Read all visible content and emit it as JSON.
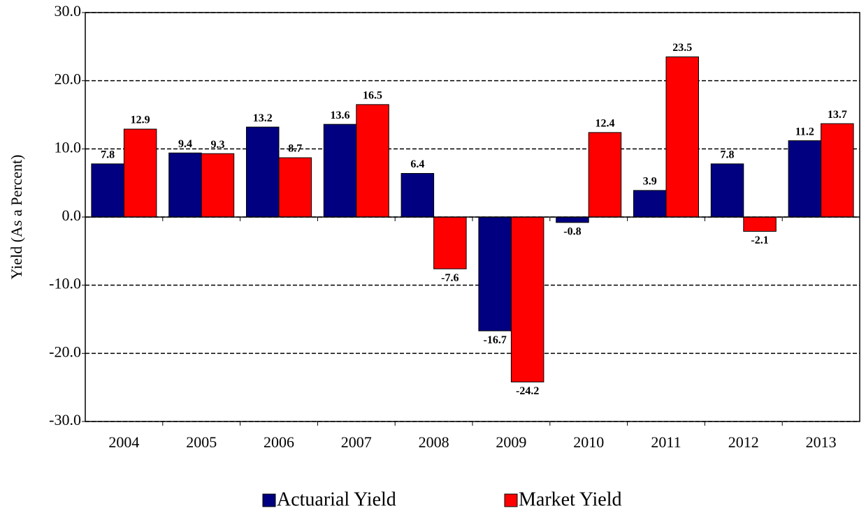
{
  "chart_data": {
    "type": "bar",
    "y_label": "Yield (As a Percent)",
    "categories": [
      "2004",
      "2005",
      "2006",
      "2007",
      "2008",
      "2009",
      "2010",
      "2011",
      "2012",
      "2013"
    ],
    "series": [
      {
        "name": "Actuarial Yield",
        "color": "#000080",
        "values": [
          7.8,
          9.4,
          13.2,
          13.6,
          6.4,
          -16.7,
          -0.8,
          3.9,
          7.8,
          11.2
        ]
      },
      {
        "name": "Market Yield",
        "color": "#ff0000",
        "values": [
          12.9,
          9.3,
          8.7,
          16.5,
          -7.6,
          -24.2,
          12.4,
          23.5,
          -2.1,
          13.7
        ]
      }
    ],
    "ylim": [
      -30,
      30
    ],
    "yticks": [
      {
        "value": -30,
        "label": "-30.0"
      },
      {
        "value": -20,
        "label": "-20.0"
      },
      {
        "value": -10,
        "label": "-10.0"
      },
      {
        "value": 0,
        "label": "0.0"
      },
      {
        "value": 10,
        "label": "10.0"
      },
      {
        "value": 20,
        "label": "20.0"
      },
      {
        "value": 30,
        "label": "30.0"
      }
    ],
    "grid": true
  }
}
